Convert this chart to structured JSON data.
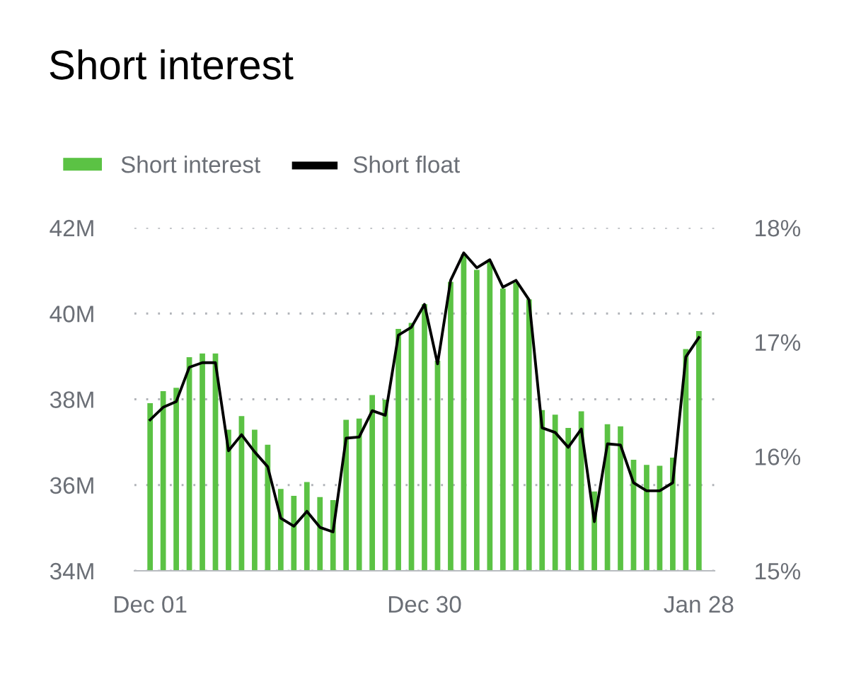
{
  "chart_data": {
    "type": "bar",
    "title": "Short interest",
    "categories": [
      "Dec 01",
      null,
      null,
      null,
      null,
      null,
      null,
      null,
      null,
      null,
      null,
      null,
      null,
      null,
      null,
      null,
      null,
      null,
      null,
      null,
      null,
      "Dec 30",
      null,
      null,
      null,
      null,
      null,
      null,
      null,
      null,
      null,
      null,
      null,
      null,
      null,
      null,
      null,
      null,
      null,
      null,
      null,
      null,
      "Jan 28"
    ],
    "series": [
      {
        "name": "Short interest",
        "color": "#5bc244",
        "values": [
          37.91,
          38.19,
          38.27,
          38.98,
          39.07,
          39.07,
          37.29,
          37.61,
          37.29,
          36.94,
          35.91,
          35.75,
          36.07,
          35.72,
          35.65,
          37.52,
          37.55,
          38.1,
          37.99,
          39.64,
          39.78,
          40.22,
          38.9,
          40.74,
          41.38,
          41.02,
          41.21,
          40.58,
          40.72,
          40.33,
          37.75,
          37.64,
          37.33,
          37.72,
          35.85,
          37.42,
          37.37,
          36.59,
          36.47,
          36.45,
          36.64,
          39.17,
          39.59
        ]
      },
      {
        "name": "Short float",
        "type": "line",
        "axis": "y2",
        "color": "#000000",
        "values": [
          16.32,
          16.43,
          16.48,
          16.78,
          16.82,
          16.82,
          16.05,
          16.19,
          16.04,
          15.91,
          15.46,
          15.39,
          15.52,
          15.38,
          15.34,
          16.16,
          16.17,
          16.4,
          16.36,
          17.06,
          17.13,
          17.33,
          16.81,
          17.54,
          17.78,
          17.65,
          17.72,
          17.48,
          17.54,
          17.37,
          16.25,
          16.21,
          16.08,
          16.24,
          15.43,
          16.11,
          16.1,
          15.77,
          15.7,
          15.7,
          15.77,
          16.87,
          17.04
        ]
      }
    ],
    "ylim": [
      34,
      42
    ],
    "yticks": [
      {
        "value": 34,
        "label": "34M"
      },
      {
        "value": 36,
        "label": "36M"
      },
      {
        "value": 38,
        "label": "38M"
      },
      {
        "value": 40,
        "label": "40M"
      },
      {
        "value": 42,
        "label": "42M"
      }
    ],
    "y2lim": [
      15,
      18
    ],
    "y2ticks": [
      {
        "value": 15,
        "label": "15%"
      },
      {
        "value": 16,
        "label": "16%"
      },
      {
        "value": 17,
        "label": "17%"
      },
      {
        "value": 18,
        "label": "18%"
      }
    ],
    "grid": "y",
    "legend": "top left",
    "marker": "none",
    "line_style": "solid"
  }
}
